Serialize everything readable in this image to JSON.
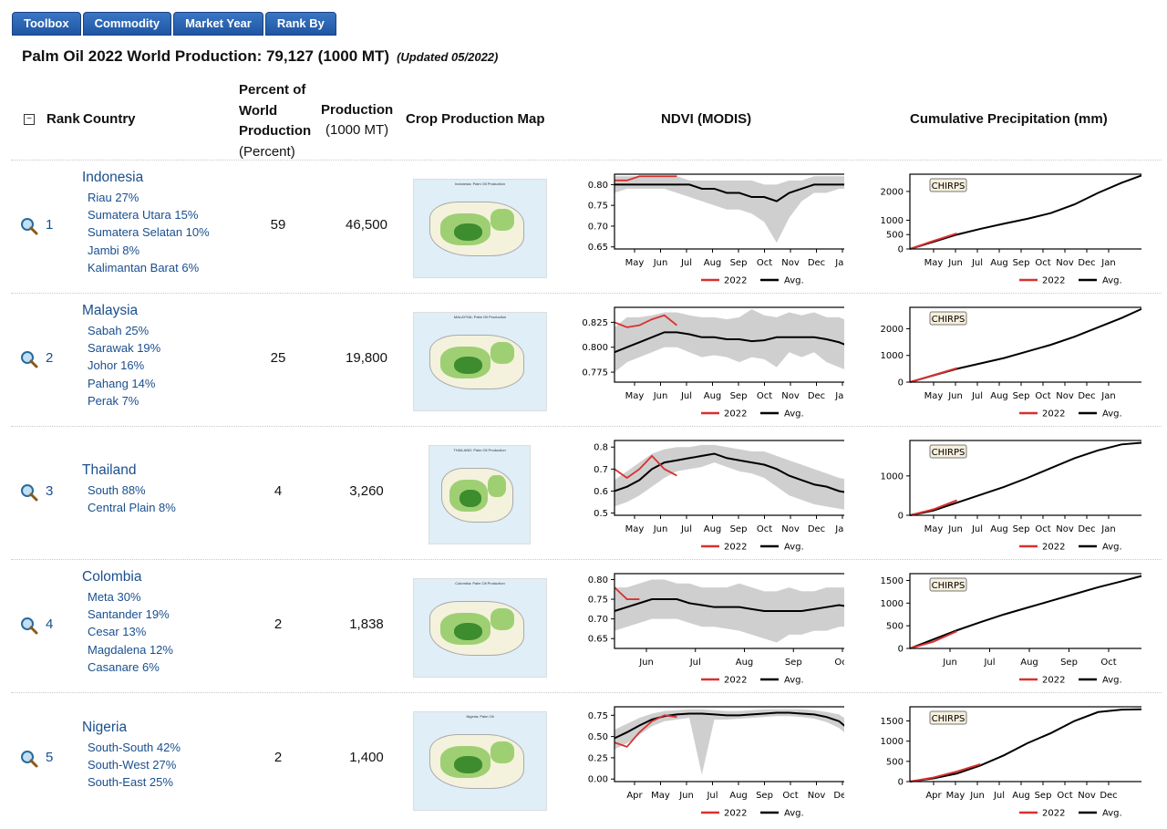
{
  "tabs": [
    "Toolbox",
    "Commodity",
    "Market Year",
    "Rank By"
  ],
  "title": {
    "main": "Palm Oil 2022  World Production: 79,127 (1000 MT)",
    "updated": "(Updated 05/2022)"
  },
  "headers": {
    "rank": "Rank",
    "country": "Country",
    "percent_l1": "Percent of",
    "percent_l2": "World",
    "percent_l3": "Production",
    "percent_sub": "(Percent)",
    "production": "Production",
    "production_sub": "(1000 MT)",
    "map": "Crop Production Map",
    "ndvi": "NDVI (MODIS)",
    "precip": "Cumulative Precipitation (mm)"
  },
  "legend": {
    "year": "2022",
    "avg": "Avg.",
    "chirps": "CHIRPS"
  },
  "colors": {
    "red": "#d93030",
    "black": "#000000",
    "band": "#cfcfcf",
    "link": "#1a4f8f"
  },
  "rows": [
    {
      "rank": "1",
      "country": "Indonesia",
      "regions": [
        "Riau 27%",
        "Sumatera Utara 15%",
        "Sumatera Selatan 10%",
        "Jambi 8%",
        "Kalimantan Barat 6%"
      ],
      "percent": "59",
      "production": "46,500",
      "map_title": "Indonesia: Palm Oil Production",
      "ndvi": {
        "yticks": [
          "0.80",
          "0.75",
          "0.70",
          "0.65"
        ],
        "ymin": 0.645,
        "ymax": 0.825,
        "xticks": [
          "May",
          "Jun",
          "Jul",
          "Aug",
          "Sep",
          "Oct",
          "Nov",
          "Dec",
          "Jan"
        ],
        "avg": [
          0.8,
          0.8,
          0.8,
          0.8,
          0.8,
          0.8,
          0.8,
          0.79,
          0.79,
          0.78,
          0.78,
          0.77,
          0.77,
          0.76,
          0.78,
          0.79,
          0.8,
          0.8,
          0.8,
          0.8
        ],
        "lo": [
          0.78,
          0.79,
          0.79,
          0.79,
          0.79,
          0.78,
          0.77,
          0.76,
          0.75,
          0.74,
          0.74,
          0.73,
          0.71,
          0.66,
          0.72,
          0.76,
          0.78,
          0.78,
          0.79,
          0.79
        ],
        "hi": [
          0.82,
          0.82,
          0.82,
          0.82,
          0.82,
          0.82,
          0.81,
          0.81,
          0.81,
          0.81,
          0.81,
          0.81,
          0.8,
          0.8,
          0.81,
          0.81,
          0.82,
          0.82,
          0.82,
          0.82
        ],
        "y22": [
          0.81,
          0.81,
          0.82,
          0.82,
          0.82,
          0.82
        ]
      },
      "precip": {
        "yticks": [
          "2000",
          "1000",
          "500",
          "0"
        ],
        "yvals": [
          2000,
          1000,
          500,
          0
        ],
        "ymax": 2600,
        "xticks": [
          "May",
          "Jun",
          "Jul",
          "Aug",
          "Sep",
          "Oct",
          "Nov",
          "Dec",
          "Jan"
        ],
        "avg": [
          0,
          250,
          500,
          700,
          880,
          1050,
          1250,
          1550,
          1950,
          2300,
          2600
        ],
        "y22": [
          0,
          280,
          540
        ]
      }
    },
    {
      "rank": "2",
      "country": "Malaysia",
      "regions": [
        "Sabah 25%",
        "Sarawak 19%",
        "Johor 16%",
        "Pahang 14%",
        "Perak 7%"
      ],
      "percent": "25",
      "production": "19,800",
      "map_title": "MALAYSIA: Palm Oil Production",
      "ndvi": {
        "yticks": [
          "0.825",
          "0.800",
          "0.775"
        ],
        "ymin": 0.765,
        "ymax": 0.84,
        "xticks": [
          "May",
          "Jun",
          "Jul",
          "Aug",
          "Sep",
          "Oct",
          "Nov",
          "Dec",
          "Jan"
        ],
        "avg": [
          0.795,
          0.8,
          0.805,
          0.81,
          0.815,
          0.815,
          0.813,
          0.81,
          0.81,
          0.808,
          0.808,
          0.806,
          0.807,
          0.81,
          0.81,
          0.81,
          0.81,
          0.808,
          0.805,
          0.8
        ],
        "lo": [
          0.775,
          0.785,
          0.79,
          0.795,
          0.8,
          0.8,
          0.795,
          0.79,
          0.792,
          0.79,
          0.785,
          0.79,
          0.788,
          0.78,
          0.795,
          0.79,
          0.795,
          0.785,
          0.78,
          0.775
        ],
        "hi": [
          0.82,
          0.83,
          0.83,
          0.832,
          0.835,
          0.835,
          0.832,
          0.83,
          0.83,
          0.828,
          0.83,
          0.838,
          0.832,
          0.83,
          0.835,
          0.832,
          0.835,
          0.83,
          0.83,
          0.825
        ],
        "y22": [
          0.825,
          0.82,
          0.822,
          0.828,
          0.832,
          0.822
        ]
      },
      "precip": {
        "yticks": [
          "2000",
          "1000",
          "0"
        ],
        "yvals": [
          2000,
          1000,
          0
        ],
        "ymax": 2800,
        "xticks": [
          "May",
          "Jun",
          "Jul",
          "Aug",
          "Sep",
          "Oct",
          "Nov",
          "Dec",
          "Jan"
        ],
        "avg": [
          0,
          250,
          500,
          700,
          900,
          1150,
          1400,
          1700,
          2050,
          2400,
          2800
        ],
        "y22": [
          0,
          260,
          520
        ]
      }
    },
    {
      "rank": "3",
      "country": "Thailand",
      "regions": [
        "South 88%",
        "Central Plain 8%"
      ],
      "percent": "4",
      "production": "3,260",
      "map_title": "THAILAND: Palm Oil Production",
      "ndvi": {
        "yticks": [
          "0.8",
          "0.7",
          "0.6",
          "0.5"
        ],
        "ymin": 0.49,
        "ymax": 0.83,
        "xticks": [
          "May",
          "Jun",
          "Jul",
          "Aug",
          "Sep",
          "Oct",
          "Nov",
          "Dec",
          "Jan"
        ],
        "avg": [
          0.6,
          0.62,
          0.65,
          0.7,
          0.73,
          0.74,
          0.75,
          0.76,
          0.77,
          0.75,
          0.74,
          0.73,
          0.72,
          0.7,
          0.67,
          0.65,
          0.63,
          0.62,
          0.6,
          0.59
        ],
        "lo": [
          0.53,
          0.55,
          0.58,
          0.62,
          0.66,
          0.69,
          0.7,
          0.71,
          0.73,
          0.71,
          0.69,
          0.68,
          0.66,
          0.62,
          0.58,
          0.56,
          0.54,
          0.53,
          0.52,
          0.51
        ],
        "hi": [
          0.65,
          0.69,
          0.73,
          0.77,
          0.79,
          0.8,
          0.8,
          0.81,
          0.81,
          0.8,
          0.79,
          0.78,
          0.78,
          0.76,
          0.74,
          0.72,
          0.7,
          0.68,
          0.66,
          0.65
        ],
        "y22": [
          0.7,
          0.66,
          0.7,
          0.76,
          0.7,
          0.67
        ]
      },
      "precip": {
        "yticks": [
          "1000",
          "0"
        ],
        "yvals": [
          1000,
          0
        ],
        "ymax": 1900,
        "xticks": [
          "May",
          "Jun",
          "Jul",
          "Aug",
          "Sep",
          "Oct",
          "Nov",
          "Dec",
          "Jan"
        ],
        "avg": [
          0,
          120,
          320,
          520,
          720,
          950,
          1200,
          1450,
          1650,
          1800,
          1850
        ],
        "y22": [
          0,
          150,
          380
        ]
      }
    },
    {
      "rank": "4",
      "country": "Colombia",
      "regions": [
        "Meta 30%",
        "Santander 19%",
        "Cesar 13%",
        "Magdalena 12%",
        "Casanare 6%"
      ],
      "percent": "2",
      "production": "1,838",
      "map_title": "Colombia: Palm Oil Production",
      "ndvi": {
        "yticks": [
          "0.80",
          "0.75",
          "0.70",
          "0.65"
        ],
        "ymin": 0.625,
        "ymax": 0.815,
        "xticks": [
          "Jun",
          "Jul",
          "Aug",
          "Sep",
          "Oct"
        ],
        "avg": [
          0.72,
          0.73,
          0.74,
          0.75,
          0.75,
          0.75,
          0.74,
          0.735,
          0.73,
          0.73,
          0.73,
          0.725,
          0.72,
          0.72,
          0.72,
          0.72,
          0.725,
          0.73,
          0.735,
          0.73
        ],
        "lo": [
          0.67,
          0.68,
          0.69,
          0.7,
          0.7,
          0.7,
          0.69,
          0.68,
          0.68,
          0.675,
          0.67,
          0.66,
          0.65,
          0.64,
          0.66,
          0.66,
          0.67,
          0.67,
          0.68,
          0.68
        ],
        "hi": [
          0.78,
          0.78,
          0.79,
          0.8,
          0.8,
          0.79,
          0.79,
          0.78,
          0.78,
          0.78,
          0.79,
          0.78,
          0.77,
          0.77,
          0.78,
          0.77,
          0.77,
          0.78,
          0.78,
          0.78
        ],
        "y22": [
          0.78,
          0.75,
          0.75
        ]
      },
      "precip": {
        "yticks": [
          "1500",
          "1000",
          "500",
          "0"
        ],
        "yvals": [
          1500,
          1000,
          500,
          0
        ],
        "ymax": 1650,
        "xticks": [
          "Jun",
          "Jul",
          "Aug",
          "Sep",
          "Oct"
        ],
        "avg": [
          0,
          200,
          400,
          580,
          750,
          900,
          1050,
          1200,
          1350,
          1480,
          1620
        ],
        "y22": [
          0,
          150,
          380
        ]
      }
    },
    {
      "rank": "5",
      "country": "Nigeria",
      "regions": [
        "South-South 42%",
        "South-West 27%",
        "South-East 25%"
      ],
      "percent": "2",
      "production": "1,400",
      "map_title": "Nigeria: Palm Oil",
      "ndvi": {
        "yticks": [
          "0.75",
          "0.50",
          "0.25",
          "0.00"
        ],
        "ymin": -0.03,
        "ymax": 0.85,
        "xticks": [
          "Apr",
          "May",
          "Jun",
          "Jul",
          "Aug",
          "Sep",
          "Oct",
          "Nov",
          "Dec"
        ],
        "avg": [
          0.48,
          0.55,
          0.63,
          0.7,
          0.74,
          0.76,
          0.77,
          0.77,
          0.76,
          0.75,
          0.75,
          0.76,
          0.77,
          0.78,
          0.78,
          0.77,
          0.76,
          0.73,
          0.68,
          0.56
        ],
        "lo": [
          0.35,
          0.42,
          0.52,
          0.62,
          0.68,
          0.7,
          0.72,
          0.05,
          0.7,
          0.7,
          0.71,
          0.72,
          0.73,
          0.74,
          0.74,
          0.73,
          0.71,
          0.67,
          0.6,
          0.48
        ],
        "hi": [
          0.58,
          0.65,
          0.72,
          0.77,
          0.8,
          0.81,
          0.82,
          0.82,
          0.81,
          0.8,
          0.8,
          0.81,
          0.82,
          0.82,
          0.82,
          0.82,
          0.81,
          0.79,
          0.76,
          0.66
        ],
        "y22": [
          0.43,
          0.38,
          0.55,
          0.68,
          0.75,
          0.73
        ]
      },
      "precip": {
        "yticks": [
          "1500",
          "1000",
          "500",
          "0"
        ],
        "yvals": [
          1500,
          1000,
          500,
          0
        ],
        "ymax": 1850,
        "xticks": [
          "Apr",
          "May",
          "Jun",
          "Jul",
          "Aug",
          "Sep",
          "Oct",
          "Nov",
          "Dec"
        ],
        "avg": [
          0,
          80,
          200,
          400,
          650,
          950,
          1200,
          1500,
          1720,
          1780,
          1790
        ],
        "y22": [
          0,
          100,
          250,
          430
        ]
      }
    }
  ]
}
